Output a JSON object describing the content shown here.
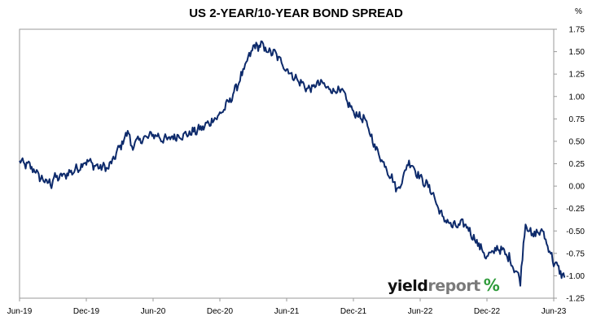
{
  "chart_data": {
    "type": "line",
    "title": "US 2-YEAR/10-YEAR BOND SPREAD",
    "y_unit": "%",
    "ylim": [
      -1.25,
      1.75
    ],
    "y_ticks": [
      "1.75",
      "1.50",
      "1.25",
      "1.00",
      "0.75",
      "0.50",
      "0.25",
      "0.00",
      "-0.25",
      "-0.50",
      "-0.75",
      "-1.00",
      "-1.25"
    ],
    "x_ticks": [
      "Jun-19",
      "Dec-19",
      "Jun-20",
      "Dec-20",
      "Jun-21",
      "Dec-21",
      "Jun-22",
      "Dec-22",
      "Jun-23"
    ],
    "x_tick_values": [
      "2019-06",
      "2019-12",
      "2020-06",
      "2020-12",
      "2021-06",
      "2021-12",
      "2022-06",
      "2022-12",
      "2023-06"
    ],
    "grid": false,
    "series": [
      {
        "color": "#0d2a6b",
        "points": [
          [
            "2019-06",
            0.27
          ],
          [
            "2019-07",
            0.22
          ],
          [
            "2019-08",
            0.08
          ],
          [
            "2019-08-27",
            0.02
          ],
          [
            "2019-09",
            0.08
          ],
          [
            "2019-10",
            0.12
          ],
          [
            "2019-11",
            0.18
          ],
          [
            "2019-12",
            0.28
          ],
          [
            "2020-01",
            0.22
          ],
          [
            "2020-02",
            0.2
          ],
          [
            "2020-03-10",
            0.5
          ],
          [
            "2020-03-25",
            0.62
          ],
          [
            "2020-04",
            0.45
          ],
          [
            "2020-05",
            0.52
          ],
          [
            "2020-06",
            0.58
          ],
          [
            "2020-07",
            0.52
          ],
          [
            "2020-08",
            0.55
          ],
          [
            "2020-09",
            0.58
          ],
          [
            "2020-10",
            0.62
          ],
          [
            "2020-11",
            0.7
          ],
          [
            "2020-12",
            0.8
          ],
          [
            "2021-01",
            0.97
          ],
          [
            "2021-02",
            1.25
          ],
          [
            "2021-03",
            1.55
          ],
          [
            "2021-03-25",
            1.58
          ],
          [
            "2021-04",
            1.52
          ],
          [
            "2021-05",
            1.48
          ],
          [
            "2021-06",
            1.3
          ],
          [
            "2021-07",
            1.18
          ],
          [
            "2021-08",
            1.08
          ],
          [
            "2021-09",
            1.15
          ],
          [
            "2021-10",
            1.08
          ],
          [
            "2021-11",
            1.05
          ],
          [
            "2021-12",
            0.82
          ],
          [
            "2022-01",
            0.75
          ],
          [
            "2022-02",
            0.42
          ],
          [
            "2022-03",
            0.2
          ],
          [
            "2022-04",
            -0.05
          ],
          [
            "2022-05",
            0.28
          ],
          [
            "2022-06",
            0.1
          ],
          [
            "2022-07",
            -0.05
          ],
          [
            "2022-08",
            -0.35
          ],
          [
            "2022-09",
            -0.45
          ],
          [
            "2022-10",
            -0.42
          ],
          [
            "2022-11",
            -0.6
          ],
          [
            "2022-12",
            -0.8
          ],
          [
            "2023-01",
            -0.68
          ],
          [
            "2023-02",
            -0.8
          ],
          [
            "2023-03-01",
            -1.05
          ],
          [
            "2023-03-15",
            -0.4
          ],
          [
            "2023-04",
            -0.55
          ],
          [
            "2023-05",
            -0.5
          ],
          [
            "2023-06",
            -0.85
          ],
          [
            "2023-06-30",
            -1.02
          ]
        ]
      }
    ]
  },
  "logo": {
    "part1": "yield",
    "part2": "report",
    "pct_a": "%",
    "pct_b": "%"
  }
}
